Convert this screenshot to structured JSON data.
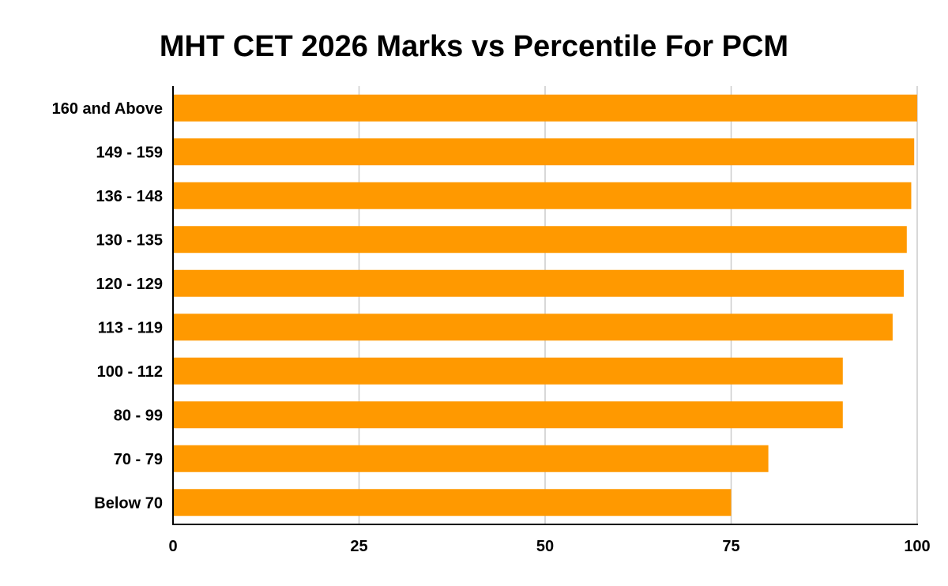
{
  "chart_data": {
    "type": "bar",
    "orientation": "horizontal",
    "title": "MHT CET 2026 Marks vs Percentile For PCM",
    "xlabel": "",
    "ylabel": "",
    "categories": [
      "160 and Above",
      "149 - 159",
      "136 - 148",
      "130 - 135",
      "120 - 129",
      "113 - 119",
      "100 - 112",
      "80 - 99",
      "70 - 79",
      "Below 70"
    ],
    "values": [
      100,
      99.6,
      99.2,
      98.6,
      98.2,
      96.7,
      90,
      90,
      80,
      75
    ],
    "xlim": [
      0,
      100
    ],
    "xticks": [
      "0",
      "25",
      "50",
      "75",
      "100"
    ],
    "grid": true,
    "bar_color": "#ff9900",
    "grid_color": "#cccccc",
    "axis_color": "#000000"
  }
}
